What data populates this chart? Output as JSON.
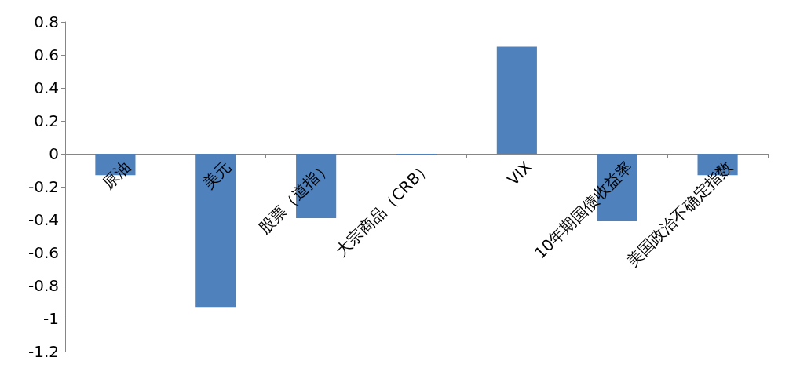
{
  "chart_data": {
    "type": "bar",
    "categories": [
      "原油",
      "美元",
      "股票（道指）",
      "大宗商品（CRB）",
      "VIX",
      "10年期国债收益率",
      "美国政治不确定指数"
    ],
    "values": [
      -0.13,
      -0.93,
      -0.39,
      -0.01,
      0.65,
      -0.41,
      -0.13
    ],
    "color": "#4f81bd",
    "ylim": [
      -1.2,
      0.8
    ],
    "yticks": [
      -1.2,
      -1,
      -0.8,
      -0.6,
      -0.4,
      -0.2,
      0,
      0.2,
      0.4,
      0.6,
      0.8
    ]
  }
}
